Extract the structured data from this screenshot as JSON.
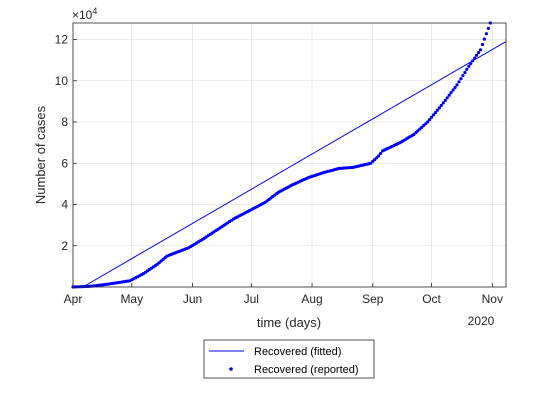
{
  "chart_data": {
    "type": "scatter",
    "xlabel": "time (days)",
    "ylabel": "Number of cases",
    "y_exponent_label": "×10",
    "y_exponent_power": "4",
    "year_label": "2020",
    "grid": true,
    "legend_position": "bottom-outside",
    "xlim": [
      "2020-04-01",
      "2020-11-08"
    ],
    "ylim": [
      0,
      128000
    ],
    "x_ticks": [
      {
        "date": "2020-04-01",
        "label": "Apr"
      },
      {
        "date": "2020-05-01",
        "label": "May"
      },
      {
        "date": "2020-06-01",
        "label": "Jun"
      },
      {
        "date": "2020-07-01",
        "label": "Jul"
      },
      {
        "date": "2020-08-01",
        "label": "Aug"
      },
      {
        "date": "2020-09-01",
        "label": "Sep"
      },
      {
        "date": "2020-10-01",
        "label": "Oct"
      },
      {
        "date": "2020-11-01",
        "label": "Nov"
      }
    ],
    "y_ticks": [
      {
        "value": 20000,
        "label": "2"
      },
      {
        "value": 40000,
        "label": "4"
      },
      {
        "value": 60000,
        "label": "6"
      },
      {
        "value": 80000,
        "label": "8"
      },
      {
        "value": 100000,
        "label": "10"
      },
      {
        "value": 120000,
        "label": "12"
      }
    ],
    "series": [
      {
        "name": "Recovered (fitted)",
        "style": "line",
        "color": "#0000ff",
        "x": [
          "2020-04-01",
          "2020-04-06",
          "2020-11-08"
        ],
        "y": [
          0,
          0,
          119000
        ]
      },
      {
        "name": "Recovered (reported)",
        "style": "dots",
        "color": "#0000ff",
        "x": [
          "2020-04-01",
          "2020-04-09",
          "2020-04-16",
          "2020-04-23",
          "2020-04-30",
          "2020-05-07",
          "2020-05-14",
          "2020-05-19",
          "2020-05-23",
          "2020-05-30",
          "2020-06-06",
          "2020-06-14",
          "2020-06-22",
          "2020-06-30",
          "2020-07-08",
          "2020-07-15",
          "2020-07-22",
          "2020-07-30",
          "2020-08-07",
          "2020-08-15",
          "2020-08-22",
          "2020-08-31",
          "2020-09-04",
          "2020-09-06",
          "2020-09-15",
          "2020-09-22",
          "2020-09-29",
          "2020-10-06",
          "2020-10-14",
          "2020-10-20",
          "2020-10-26",
          "2020-10-31"
        ],
        "y": [
          0,
          300,
          1000,
          2000,
          3000,
          6500,
          11000,
          15000,
          16500,
          19000,
          23000,
          28000,
          33000,
          37000,
          41000,
          46000,
          49500,
          53000,
          55500,
          57500,
          58000,
          60000,
          63500,
          66000,
          70000,
          74000,
          80000,
          88000,
          98000,
          107000,
          115000,
          128000
        ]
      }
    ]
  }
}
